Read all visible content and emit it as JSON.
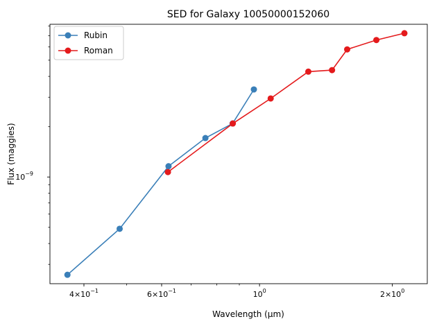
{
  "chart_data": {
    "type": "line",
    "title": "SED for Galaxy 10050000152060",
    "xlabel": "Wavelength (μm)",
    "ylabel": "Flux (maggies)",
    "xscale": "log",
    "yscale": "log",
    "xlim": [
      0.335,
      2.4
    ],
    "ylim": [
      2.3e-10,
      8.2e-09
    ],
    "grid": false,
    "legend_position": "top-left",
    "x_ticks": [
      {
        "value": 0.4,
        "base": "4",
        "exp": "−1"
      },
      {
        "value": 0.6,
        "base": "6",
        "exp": "−1"
      },
      {
        "value": 1.0,
        "base": "10",
        "exp": "0",
        "plain": true
      },
      {
        "value": 2.0,
        "base": "2",
        "exp": "0"
      }
    ],
    "y_ticks": [
      {
        "value": 1e-09,
        "base": "10",
        "exp": "−9",
        "plain": true
      }
    ],
    "series": [
      {
        "name": "Rubin",
        "color": "#3a7fb8",
        "x": [
          0.367,
          0.482,
          0.622,
          0.754,
          0.869,
          0.971
        ],
        "y": [
          2.6e-10,
          4.9e-10,
          1.16e-09,
          1.71e-09,
          2.09e-09,
          3.34e-09
        ]
      },
      {
        "name": "Roman",
        "color": "#e41a1c",
        "x": [
          0.62,
          0.87,
          1.06,
          1.29,
          1.46,
          1.58,
          1.84,
          2.13
        ],
        "y": [
          1.07e-09,
          2.09e-09,
          2.95e-09,
          4.27e-09,
          4.36e-09,
          5.8e-09,
          6.6e-09,
          7.25e-09
        ]
      }
    ]
  }
}
